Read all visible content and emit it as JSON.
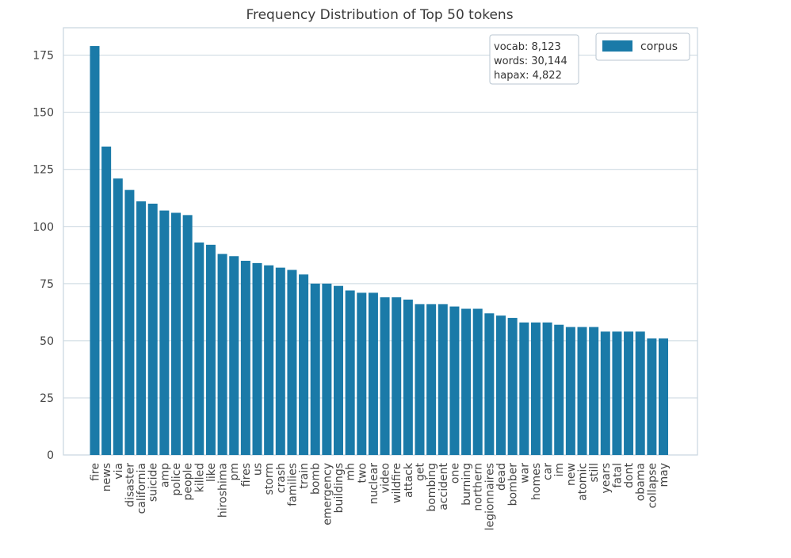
{
  "chart_data": {
    "type": "bar",
    "title": "Frequency Distribution of Top 50 tokens",
    "xlabel": "",
    "ylabel": "",
    "ylim": [
      0,
      187
    ],
    "yticks": [
      0,
      25,
      50,
      75,
      100,
      125,
      150,
      175
    ],
    "grid": true,
    "legend": {
      "placement": "top-right",
      "entries": [
        "corpus"
      ]
    },
    "color": "#1a7aa8",
    "series": [
      {
        "name": "corpus",
        "values": [
          179,
          135,
          121,
          116,
          111,
          110,
          107,
          106,
          105,
          93,
          92,
          88,
          87,
          85,
          84,
          83,
          82,
          81,
          79,
          75,
          75,
          74,
          72,
          71,
          71,
          69,
          69,
          68,
          66,
          66,
          66,
          65,
          64,
          64,
          62,
          61,
          60,
          58,
          58,
          58,
          57,
          56,
          56,
          56,
          54,
          54,
          54,
          54,
          51,
          51
        ]
      }
    ],
    "categories": [
      "fire",
      "news",
      "via",
      "disaster",
      "california",
      "suicide",
      "amp",
      "police",
      "people",
      "killed",
      "like",
      "hiroshima",
      "pm",
      "fires",
      "us",
      "storm",
      "crash",
      "families",
      "train",
      "bomb",
      "emergency",
      "buildings",
      "mh",
      "two",
      "nuclear",
      "video",
      "wildfire",
      "attack",
      "get",
      "bombing",
      "accident",
      "one",
      "burning",
      "northern",
      "legionnaires",
      "dead",
      "bomber",
      "war",
      "homes",
      "car",
      "im",
      "new",
      "atomic",
      "still",
      "years",
      "fatal",
      "dont",
      "obama",
      "collapse",
      "may"
    ],
    "annotation": {
      "vocab": "vocab: 8,123",
      "words": "words: 30,144",
      "hapax": "hapax: 4,822"
    }
  }
}
